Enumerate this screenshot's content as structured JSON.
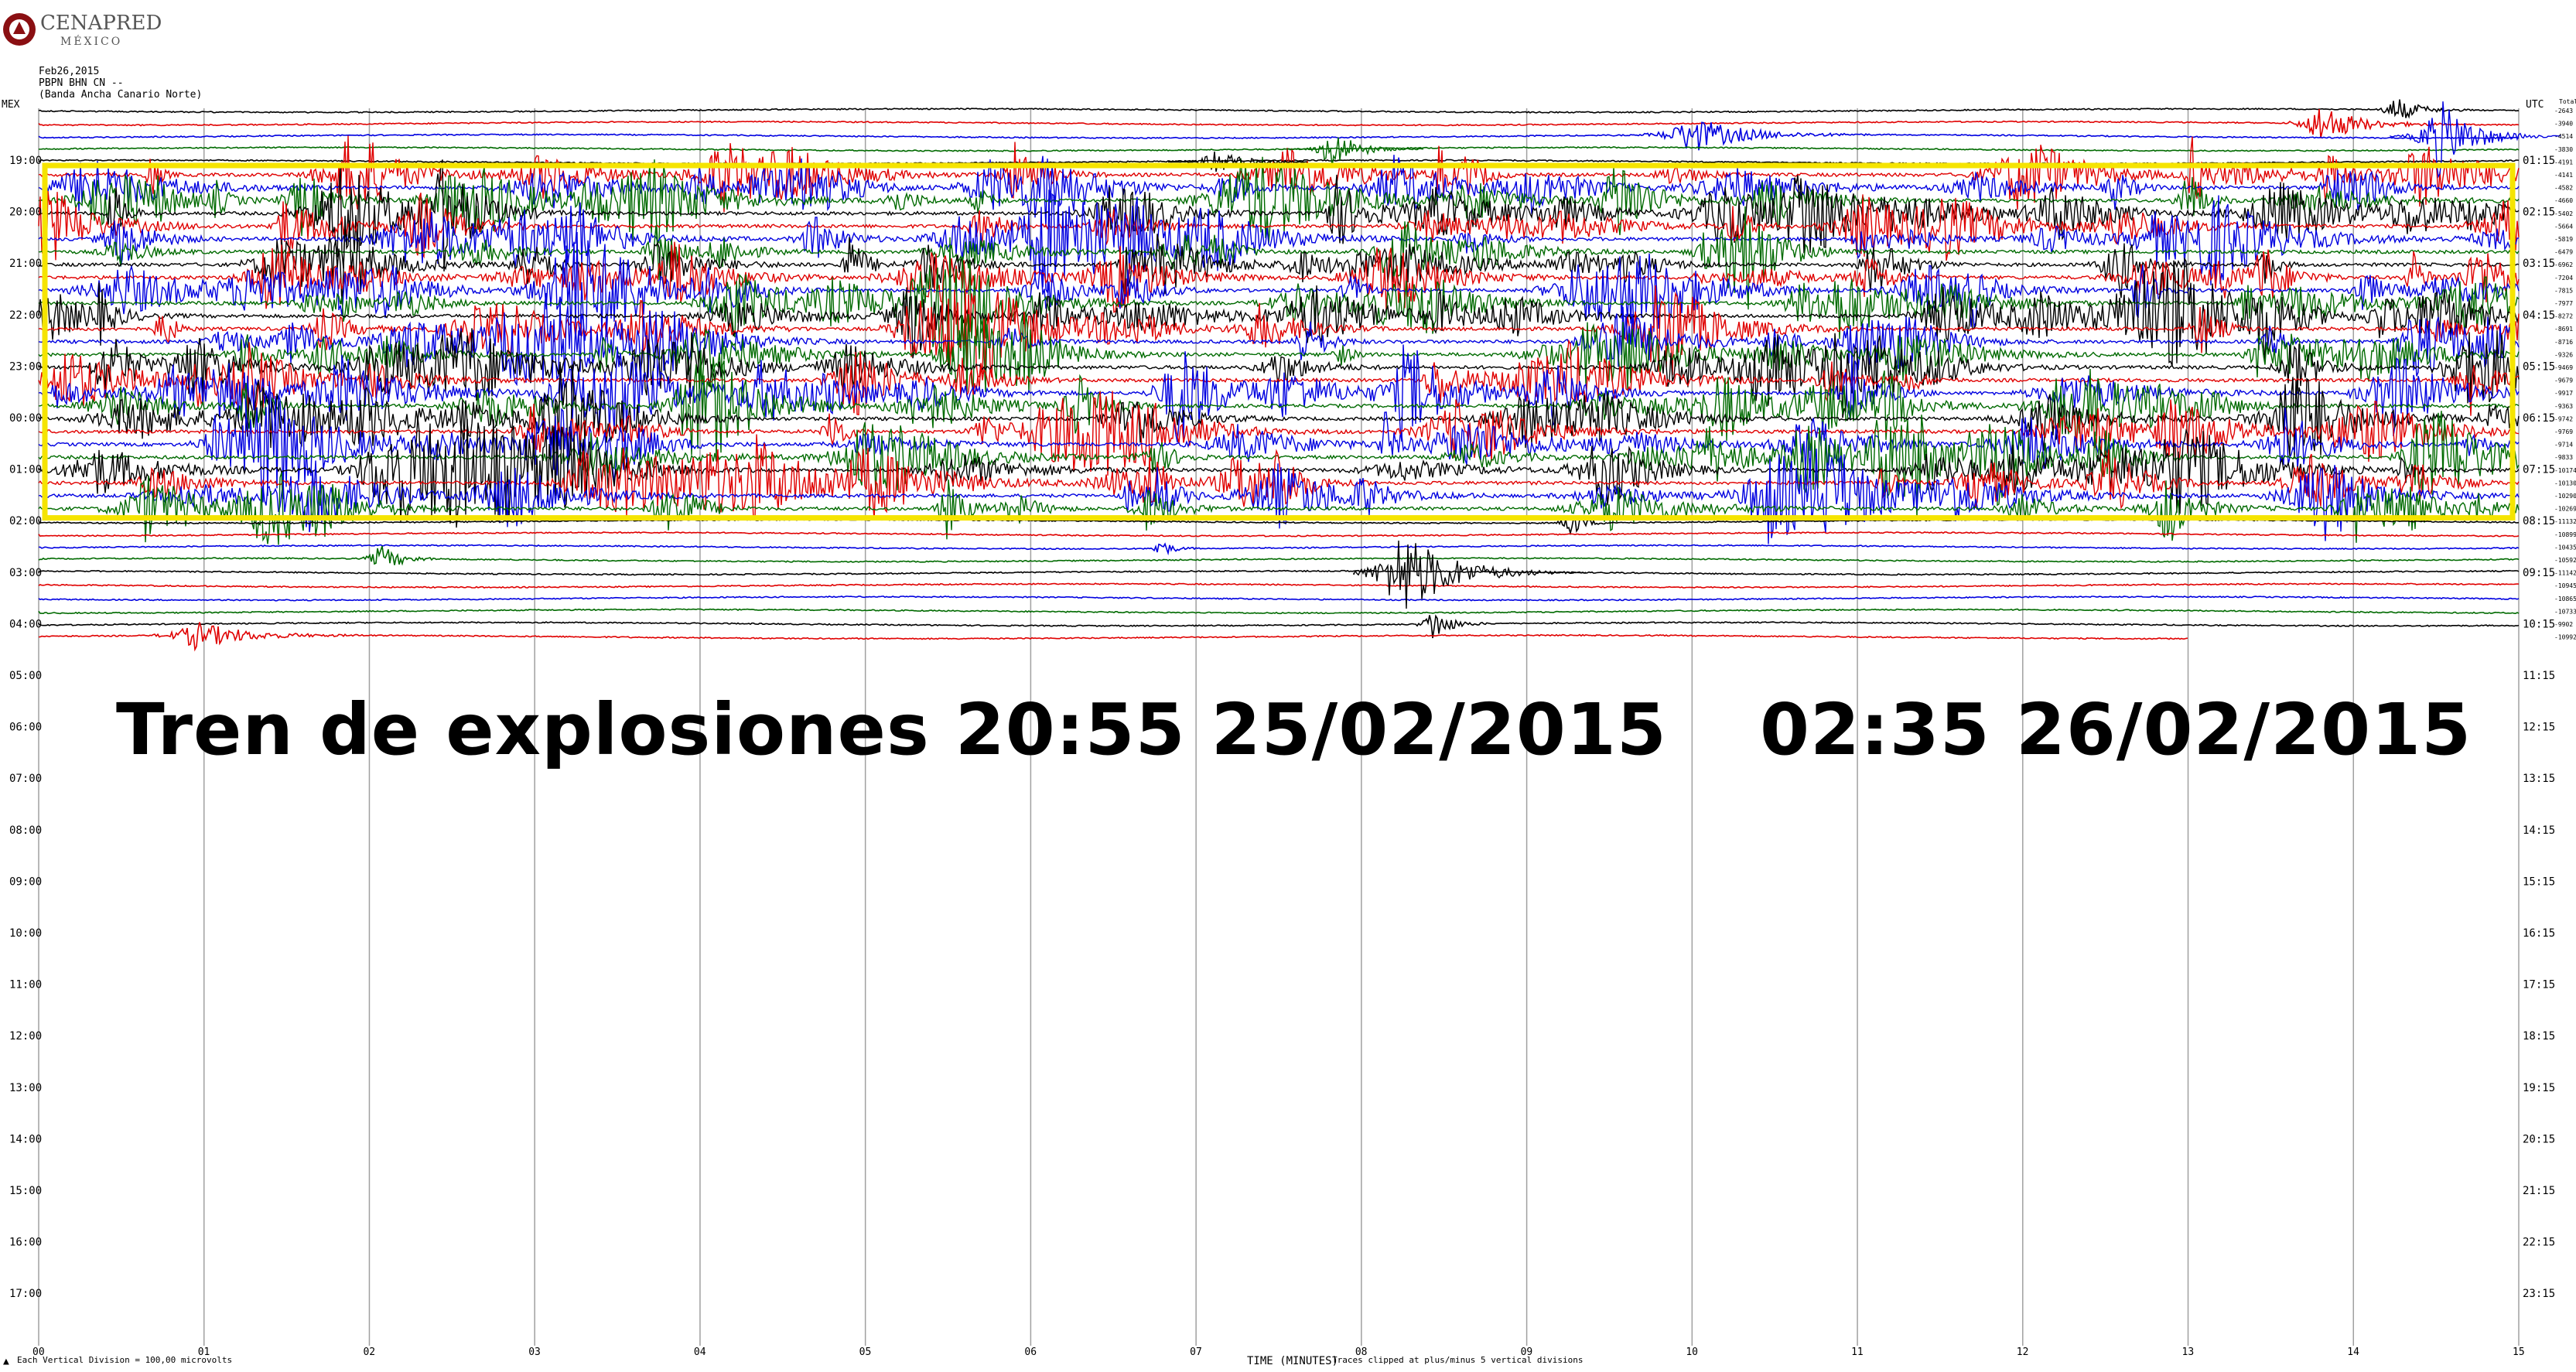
{
  "logo": {
    "name": "CENAPRED",
    "sub": "MÉXICO"
  },
  "header": {
    "date": "Feb26,2015",
    "station": "PBPN BHN CN --",
    "description": "(Banda Ancha Canario Norte)"
  },
  "axis_labels": {
    "left_zone": "MEX",
    "right_zone": "UTC",
    "right_top": "Total RMS"
  },
  "overlay": {
    "part1": "Tren de explosiones 20:55 25/02/2015",
    "part2": "02:35 26/02/2015"
  },
  "footer": {
    "scale_note": "Each Vertical Division = 100,00 microvolts",
    "xlabel": "TIME (MINUTES)",
    "clip_note": "Traces clipped at plus/minus 5 vertical divisions"
  },
  "colors": {
    "trace_cycle": [
      "#000000",
      "#e00000",
      "#0000e0",
      "#006a00"
    ],
    "highlight": "#f5e400",
    "grid": "#a0a0a0"
  },
  "chart_data": {
    "type": "line",
    "title": "",
    "xlabel": "TIME (MINUTES)",
    "x_ticks": [
      "00",
      "01",
      "02",
      "03",
      "04",
      "05",
      "06",
      "07",
      "08",
      "09",
      "10",
      "11",
      "12",
      "13",
      "14",
      "15"
    ],
    "xlim": [
      0,
      15
    ],
    "left_hour_labels": [
      "19:00",
      "20:00",
      "21:00",
      "22:00",
      "23:00",
      "00:00",
      "01:00",
      "02:00",
      "03:00",
      "04:00",
      "05:00",
      "06:00",
      "07:00",
      "08:00",
      "09:00",
      "10:00",
      "11:00",
      "12:00",
      "13:00",
      "14:00",
      "15:00",
      "16:00",
      "17:00"
    ],
    "right_hour_labels": [
      "01:15",
      "02:15",
      "03:15",
      "04:15",
      "05:15",
      "06:15",
      "07:15",
      "08:15",
      "09:15",
      "10:15",
      "11:15",
      "12:15",
      "13:15",
      "14:15",
      "15:15",
      "16:15",
      "17:15",
      "18:15",
      "19:15",
      "20:15",
      "21:15",
      "22:15",
      "23:15"
    ],
    "rms_values": [
      "2643",
      "3940",
      "4514",
      "3830",
      "4191",
      "4141",
      "4582",
      "4660",
      "5402",
      "5664",
      "5819",
      "6479",
      "6962",
      "7204",
      "7815",
      "7977",
      "8272",
      "8691",
      "8716",
      "9326",
      "9469",
      "9679",
      "9917",
      "9363",
      "9742",
      "9769",
      "9714",
      "9833",
      "10174",
      "10130",
      "10290",
      "10269",
      "11132",
      "10899",
      "10435",
      "10592",
      "11142",
      "10945",
      "10865",
      "10733",
      "9902",
      "10992"
    ],
    "series": [
      {
        "name": "Tren de explosiones",
        "start": "20:55 25/02/2015",
        "end": "02:35 26/02/2015"
      }
    ],
    "grid": true
  }
}
